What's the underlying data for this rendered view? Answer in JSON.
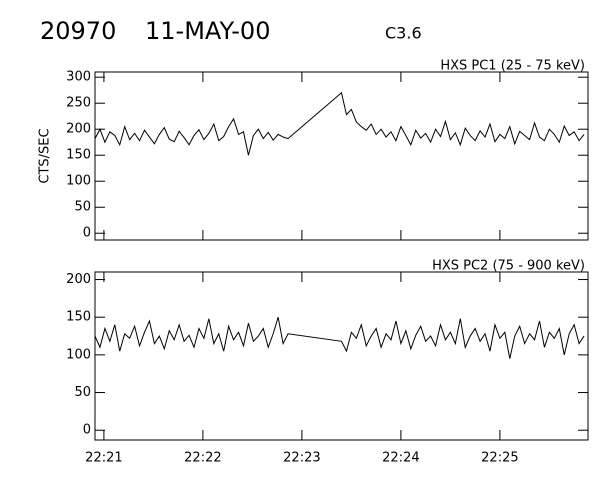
{
  "header": {
    "id": "20970",
    "date": "11-MAY-00",
    "class": "C3.6"
  },
  "chart_data": [
    {
      "type": "line",
      "title": "HXS PC1 (25 - 75 keV)",
      "y_label": "CTS/SEC",
      "x": [
        20.91,
        20.96,
        21.01,
        21.06,
        21.11,
        21.16,
        21.21,
        21.26,
        21.31,
        21.36,
        21.41,
        21.46,
        21.51,
        21.56,
        21.61,
        21.66,
        21.71,
        21.76,
        21.81,
        21.86,
        21.91,
        21.96,
        22.01,
        22.06,
        22.11,
        22.16,
        22.21,
        22.26,
        22.31,
        22.36,
        22.41,
        22.46,
        22.51,
        22.56,
        22.61,
        22.66,
        22.71,
        22.76,
        22.81,
        22.86,
        23.4,
        23.45,
        23.5,
        23.55,
        23.6,
        23.65,
        23.7,
        23.75,
        23.8,
        23.85,
        23.9,
        23.95,
        24.0,
        24.05,
        24.1,
        24.15,
        24.2,
        24.25,
        24.3,
        24.35,
        24.4,
        24.45,
        24.5,
        24.55,
        24.6,
        24.65,
        24.7,
        24.75,
        24.8,
        24.85,
        24.9,
        24.95,
        25.0,
        25.05,
        25.1,
        25.15,
        25.2,
        25.25,
        25.3,
        25.35,
        25.4,
        25.45,
        25.5,
        25.55,
        25.6,
        25.65,
        25.7,
        25.75,
        25.8,
        25.85
      ],
      "values": [
        182,
        200,
        175,
        195,
        188,
        170,
        205,
        180,
        192,
        178,
        198,
        185,
        172,
        190,
        203,
        181,
        176,
        196,
        184,
        170,
        188,
        199,
        180,
        192,
        210,
        178,
        186,
        205,
        220,
        190,
        195,
        150,
        188,
        200,
        182,
        194,
        179,
        190,
        185,
        182,
        270,
        228,
        238,
        214,
        205,
        198,
        210,
        190,
        200,
        185,
        195,
        178,
        205,
        188,
        170,
        198,
        183,
        192,
        175,
        200,
        186,
        215,
        180,
        193,
        170,
        202,
        188,
        178,
        197,
        185,
        210,
        176,
        190,
        182,
        205,
        172,
        196,
        188,
        180,
        212,
        185,
        178,
        200,
        190,
        175,
        206,
        188,
        195,
        178,
        190
      ],
      "color": "#000000",
      "xlim": [
        20.91,
        25.89
      ],
      "xticks": [
        21,
        22,
        23,
        24,
        25
      ],
      "ylim": [
        -13,
        310
      ],
      "yticks": [
        0,
        50,
        100,
        150,
        200,
        250,
        300
      ]
    },
    {
      "type": "line",
      "title": "HXS PC2 (75 - 900 keV)",
      "x": [
        20.91,
        20.96,
        21.01,
        21.06,
        21.11,
        21.16,
        21.21,
        21.26,
        21.31,
        21.36,
        21.41,
        21.46,
        21.51,
        21.56,
        21.61,
        21.66,
        21.71,
        21.76,
        21.81,
        21.86,
        21.91,
        21.96,
        22.01,
        22.06,
        22.11,
        22.16,
        22.21,
        22.26,
        22.31,
        22.36,
        22.41,
        22.46,
        22.51,
        22.56,
        22.61,
        22.66,
        22.71,
        22.76,
        22.81,
        22.86,
        23.4,
        23.45,
        23.5,
        23.55,
        23.6,
        23.65,
        23.7,
        23.75,
        23.8,
        23.85,
        23.9,
        23.95,
        24.0,
        24.05,
        24.1,
        24.15,
        24.2,
        24.25,
        24.3,
        24.35,
        24.4,
        24.45,
        24.5,
        24.55,
        24.6,
        24.65,
        24.7,
        24.75,
        24.8,
        24.85,
        24.9,
        24.95,
        25.0,
        25.05,
        25.1,
        25.15,
        25.2,
        25.25,
        25.3,
        25.35,
        25.4,
        25.45,
        25.5,
        25.55,
        25.6,
        25.65,
        25.7,
        25.75,
        25.8,
        25.85
      ],
      "values": [
        125,
        110,
        135,
        118,
        140,
        105,
        128,
        122,
        138,
        112,
        130,
        145,
        115,
        125,
        108,
        132,
        120,
        140,
        118,
        126,
        110,
        135,
        122,
        148,
        115,
        128,
        105,
        138,
        120,
        130,
        112,
        142,
        118,
        125,
        135,
        110,
        128,
        150,
        115,
        128,
        118,
        105,
        130,
        122,
        140,
        112,
        125,
        135,
        110,
        128,
        120,
        145,
        115,
        132,
        108,
        126,
        138,
        118,
        125,
        112,
        140,
        120,
        130,
        115,
        148,
        110,
        125,
        135,
        118,
        128,
        105,
        140,
        122,
        130,
        95,
        125,
        138,
        115,
        128,
        120,
        145,
        110,
        130,
        122,
        135,
        100,
        128,
        140,
        115,
        125
      ],
      "color": "#000000",
      "xlim": [
        20.91,
        25.89
      ],
      "xticks": [
        {
          "value": 21,
          "label": "22:21"
        },
        {
          "value": 22,
          "label": "22:22"
        },
        {
          "value": 23,
          "label": "22:23"
        },
        {
          "value": 24,
          "label": "22:24"
        },
        {
          "value": 25,
          "label": "22:25"
        }
      ],
      "ylim": [
        -13,
        210
      ],
      "yticks": [
        0,
        50,
        100,
        150,
        200
      ]
    }
  ]
}
